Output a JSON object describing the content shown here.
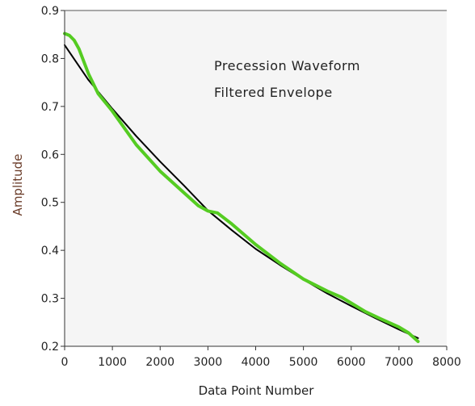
{
  "chart_data": {
    "type": "line",
    "title": "",
    "xlabel": "Data Point Number",
    "ylabel": "Amplitude",
    "xlim": [
      0,
      8000
    ],
    "ylim": [
      0.2,
      0.9
    ],
    "xticks": [
      0,
      1000,
      2000,
      3000,
      4000,
      5000,
      6000,
      7000,
      8000
    ],
    "yticks": [
      0.2,
      0.3,
      0.4,
      0.5,
      0.6,
      0.7,
      0.8,
      0.9
    ],
    "grid": false,
    "legend_placement": "top-right",
    "series": [
      {
        "name": "Precession Waveform",
        "color": "#000000",
        "x": [
          0,
          500,
          1000,
          1500,
          2000,
          2500,
          3000,
          3500,
          4000,
          4500,
          5000,
          5500,
          6000,
          6500,
          7000,
          7400
        ],
        "y": [
          0.828,
          0.755,
          0.695,
          0.638,
          0.585,
          0.535,
          0.483,
          0.442,
          0.403,
          0.37,
          0.339,
          0.31,
          0.284,
          0.259,
          0.235,
          0.217
        ]
      },
      {
        "name": "Filtered Envelope",
        "color": "#55cc22",
        "x": [
          0,
          100,
          200,
          300,
          500,
          700,
          1000,
          1500,
          2000,
          2500,
          2800,
          3000,
          3200,
          3500,
          4000,
          4500,
          5000,
          5500,
          5800,
          6000,
          6300,
          6600,
          7000,
          7200,
          7400
        ],
        "y": [
          0.852,
          0.848,
          0.838,
          0.82,
          0.768,
          0.727,
          0.69,
          0.62,
          0.565,
          0.52,
          0.493,
          0.482,
          0.478,
          0.455,
          0.412,
          0.374,
          0.34,
          0.315,
          0.302,
          0.29,
          0.272,
          0.258,
          0.24,
          0.228,
          0.21
        ]
      }
    ]
  }
}
